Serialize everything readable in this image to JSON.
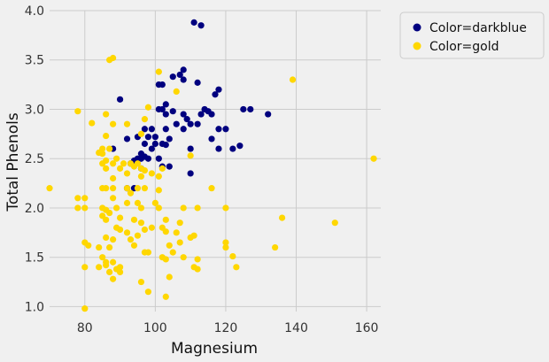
{
  "chart_data": {
    "type": "scatter",
    "xlabel": "Magnesium",
    "ylabel": "Total Phenols",
    "xlim": [
      70,
      164
    ],
    "ylim": [
      0.95,
      4.0
    ],
    "xticks": [
      80,
      100,
      120,
      140,
      160
    ],
    "yticks": [
      1.0,
      1.5,
      2.0,
      2.5,
      3.0,
      3.5,
      4.0
    ],
    "grid": true,
    "legend_position": "outside-top-right",
    "series": [
      {
        "name": "Color=darkblue",
        "color": "#00007f",
        "points": [
          [
            111,
            3.88
          ],
          [
            113,
            3.85
          ],
          [
            108,
            3.4
          ],
          [
            107,
            3.35
          ],
          [
            105,
            3.33
          ],
          [
            112,
            3.27
          ],
          [
            101,
            3.25
          ],
          [
            102,
            3.25
          ],
          [
            103,
            3.05
          ],
          [
            108,
            3.3
          ],
          [
            118,
            3.2
          ],
          [
            117,
            3.15
          ],
          [
            90,
            3.1
          ],
          [
            101,
            3.0
          ],
          [
            102,
            3.0
          ],
          [
            105,
            2.98
          ],
          [
            109,
            2.9
          ],
          [
            114,
            3.0
          ],
          [
            115,
            2.98
          ],
          [
            113,
            2.95
          ],
          [
            116,
            2.95
          ],
          [
            108,
            2.95
          ],
          [
            125,
            3.0
          ],
          [
            127,
            3.0
          ],
          [
            132,
            2.95
          ],
          [
            110,
            2.85
          ],
          [
            112,
            2.85
          ],
          [
            106,
            2.85
          ],
          [
            103,
            2.95
          ],
          [
            97,
            2.8
          ],
          [
            99,
            2.8
          ],
          [
            103,
            2.8
          ],
          [
            108,
            2.8
          ],
          [
            110,
            2.6
          ],
          [
            118,
            2.8
          ],
          [
            120,
            2.8
          ],
          [
            122,
            2.6
          ],
          [
            116,
            2.7
          ],
          [
            118,
            2.6
          ],
          [
            124,
            2.63
          ],
          [
            95,
            2.72
          ],
          [
            98,
            2.72
          ],
          [
            100,
            2.72
          ],
          [
            104,
            2.7
          ],
          [
            97,
            2.65
          ],
          [
            100,
            2.65
          ],
          [
            102,
            2.65
          ],
          [
            103,
            2.64
          ],
          [
            92,
            2.7
          ],
          [
            88,
            2.6
          ],
          [
            96,
            2.5
          ],
          [
            95,
            2.5
          ],
          [
            94,
            2.48
          ],
          [
            93,
            2.45
          ],
          [
            96,
            2.55
          ],
          [
            97,
            2.52
          ],
          [
            98,
            2.5
          ],
          [
            99,
            2.6
          ],
          [
            101,
            2.5
          ],
          [
            102,
            2.42
          ],
          [
            104,
            2.42
          ],
          [
            96,
            2.4
          ],
          [
            92,
            2.2
          ],
          [
            94,
            2.2
          ],
          [
            110,
            2.35
          ]
        ]
      },
      {
        "name": "Color=gold",
        "color": "#ffd700",
        "points": [
          [
            87,
            3.5
          ],
          [
            88,
            3.52
          ],
          [
            101,
            3.38
          ],
          [
            106,
            3.18
          ],
          [
            139,
            3.3
          ],
          [
            98,
            3.02
          ],
          [
            78,
            2.98
          ],
          [
            86,
            2.95
          ],
          [
            82,
            2.86
          ],
          [
            88,
            2.85
          ],
          [
            92,
            2.85
          ],
          [
            97,
            2.9
          ],
          [
            86,
            2.73
          ],
          [
            96,
            2.75
          ],
          [
            110,
            2.53
          ],
          [
            162,
            2.5
          ],
          [
            85,
            2.6
          ],
          [
            87,
            2.6
          ],
          [
            84,
            2.56
          ],
          [
            85,
            2.55
          ],
          [
            86,
            2.48
          ],
          [
            85,
            2.45
          ],
          [
            86,
            2.4
          ],
          [
            88,
            2.45
          ],
          [
            89,
            2.5
          ],
          [
            90,
            2.4
          ],
          [
            91,
            2.45
          ],
          [
            93,
            2.45
          ],
          [
            95,
            2.45
          ],
          [
            94,
            2.42
          ],
          [
            96,
            2.4
          ],
          [
            97,
            2.38
          ],
          [
            88,
            2.3
          ],
          [
            92,
            2.35
          ],
          [
            96,
            2.32
          ],
          [
            99,
            2.35
          ],
          [
            102,
            2.4
          ],
          [
            101,
            2.32
          ],
          [
            70,
            2.2
          ],
          [
            85,
            2.2
          ],
          [
            86,
            2.2
          ],
          [
            88,
            2.2
          ],
          [
            92,
            2.2
          ],
          [
            93,
            2.15
          ],
          [
            95,
            2.2
          ],
          [
            97,
            2.2
          ],
          [
            101,
            2.18
          ],
          [
            116,
            2.2
          ],
          [
            78,
            2.1
          ],
          [
            80,
            2.1
          ],
          [
            88,
            2.1
          ],
          [
            92,
            2.05
          ],
          [
            95,
            2.05
          ],
          [
            100,
            2.05
          ],
          [
            101,
            2.0
          ],
          [
            96,
            2.0
          ],
          [
            78,
            2.0
          ],
          [
            80,
            2.0
          ],
          [
            85,
            2.0
          ],
          [
            86,
            1.98
          ],
          [
            87,
            1.95
          ],
          [
            89,
            2.0
          ],
          [
            85,
            1.92
          ],
          [
            86,
            1.88
          ],
          [
            90,
            1.9
          ],
          [
            94,
            1.88
          ],
          [
            96,
            1.85
          ],
          [
            103,
            1.88
          ],
          [
            107,
            1.85
          ],
          [
            108,
            2.0
          ],
          [
            112,
            2.0
          ],
          [
            120,
            2.0
          ],
          [
            136,
            1.9
          ],
          [
            151,
            1.85
          ],
          [
            89,
            1.8
          ],
          [
            90,
            1.78
          ],
          [
            92,
            1.75
          ],
          [
            95,
            1.72
          ],
          [
            97,
            1.78
          ],
          [
            99,
            1.8
          ],
          [
            102,
            1.8
          ],
          [
            103,
            1.76
          ],
          [
            106,
            1.75
          ],
          [
            110,
            1.7
          ],
          [
            111,
            1.72
          ],
          [
            86,
            1.7
          ],
          [
            88,
            1.68
          ],
          [
            93,
            1.68
          ],
          [
            97,
            1.55
          ],
          [
            98,
            1.55
          ],
          [
            81,
            1.62
          ],
          [
            84,
            1.6
          ],
          [
            87,
            1.6
          ],
          [
            80,
            1.65
          ],
          [
            94,
            1.62
          ],
          [
            104,
            1.62
          ],
          [
            107,
            1.65
          ],
          [
            120,
            1.65
          ],
          [
            120,
            1.6
          ],
          [
            134,
            1.6
          ],
          [
            85,
            1.5
          ],
          [
            86,
            1.45
          ],
          [
            88,
            1.45
          ],
          [
            90,
            1.4
          ],
          [
            102,
            1.5
          ],
          [
            103,
            1.48
          ],
          [
            105,
            1.55
          ],
          [
            108,
            1.5
          ],
          [
            112,
            1.48
          ],
          [
            122,
            1.51
          ],
          [
            80,
            1.4
          ],
          [
            84,
            1.4
          ],
          [
            86,
            1.42
          ],
          [
            87,
            1.35
          ],
          [
            88,
            1.28
          ],
          [
            89,
            1.38
          ],
          [
            90,
            1.35
          ],
          [
            104,
            1.3
          ],
          [
            111,
            1.4
          ],
          [
            112,
            1.38
          ],
          [
            123,
            1.4
          ],
          [
            96,
            1.25
          ],
          [
            98,
            1.15
          ],
          [
            103,
            1.1
          ],
          [
            80,
            0.98
          ]
        ]
      }
    ]
  }
}
